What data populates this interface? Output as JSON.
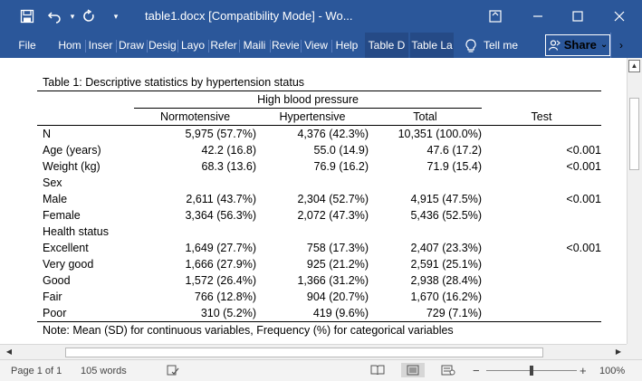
{
  "window": {
    "title": "table1.docx [Compatibility Mode]  -  Wo...",
    "qat": {
      "save_icon": "save-icon",
      "undo_icon": "undo-icon",
      "redo_icon": "redo-icon",
      "customize_icon": "customize-icon"
    },
    "controls": {
      "restore_ribbon": "ribbon-display-icon",
      "minimize": "minimize-icon",
      "maximize": "maximize-icon",
      "close": "close-icon"
    }
  },
  "ribbon": {
    "tabs": [
      "File",
      "Hom",
      "Inser",
      "Draw",
      "Desig",
      "Layo",
      "Refer",
      "Maili",
      "Revie",
      "View",
      "Help",
      "Table D",
      "Table La"
    ],
    "tell_me": "Tell me",
    "share": "Share",
    "share_chevron": "⌄",
    "collapse_arrow": "›"
  },
  "document": {
    "caption": "Table 1: Descriptive statistics by hypertension status",
    "group_header": "High blood pressure",
    "columns": [
      "",
      "Normotensive",
      "Hypertensive",
      "Total",
      "Test"
    ],
    "rows": [
      {
        "label": "N",
        "indent": false,
        "cells": [
          "5,975 (57.7%)",
          "4,376 (42.3%)",
          "10,351 (100.0%)",
          ""
        ]
      },
      {
        "label": "Age (years)",
        "indent": false,
        "cells": [
          "42.2 (16.8)",
          "55.0 (14.9)",
          "47.6 (17.2)",
          "<0.001"
        ]
      },
      {
        "label": "Weight (kg)",
        "indent": false,
        "cells": [
          "68.3 (13.6)",
          "76.9 (16.2)",
          "71.9 (15.4)",
          "<0.001"
        ]
      },
      {
        "label": "Sex",
        "indent": false,
        "cells": [
          "",
          "",
          "",
          ""
        ]
      },
      {
        "label": "Male",
        "indent": true,
        "cells": [
          "2,611 (43.7%)",
          "2,304 (52.7%)",
          "4,915 (47.5%)",
          "<0.001"
        ]
      },
      {
        "label": "Female",
        "indent": true,
        "cells": [
          "3,364 (56.3%)",
          "2,072 (47.3%)",
          "5,436 (52.5%)",
          ""
        ]
      },
      {
        "label": "Health status",
        "indent": false,
        "cells": [
          "",
          "",
          "",
          ""
        ]
      },
      {
        "label": "Excellent",
        "indent": true,
        "cells": [
          "1,649 (27.7%)",
          "758 (17.3%)",
          "2,407 (23.3%)",
          "<0.001"
        ]
      },
      {
        "label": "Very good",
        "indent": true,
        "cells": [
          "1,666 (27.9%)",
          "925 (21.2%)",
          "2,591 (25.1%)",
          ""
        ]
      },
      {
        "label": "Good",
        "indent": true,
        "cells": [
          "1,572 (26.4%)",
          "1,366 (31.2%)",
          "2,938 (28.4%)",
          ""
        ]
      },
      {
        "label": "Fair",
        "indent": true,
        "cells": [
          "766 (12.8%)",
          "904 (20.7%)",
          "1,670 (16.2%)",
          ""
        ]
      },
      {
        "label": "Poor",
        "indent": true,
        "cells": [
          "310 (5.2%)",
          "419 (9.6%)",
          "729 (7.1%)",
          ""
        ]
      }
    ],
    "note": "Note: Mean (SD) for continuous variables, Frequency (%) for categorical variables"
  },
  "status": {
    "page": "Page 1 of 1",
    "words": "105 words",
    "zoom": "100%",
    "zoom_minus": "−",
    "zoom_plus": "+",
    "zoom_fraction": 0.5
  }
}
